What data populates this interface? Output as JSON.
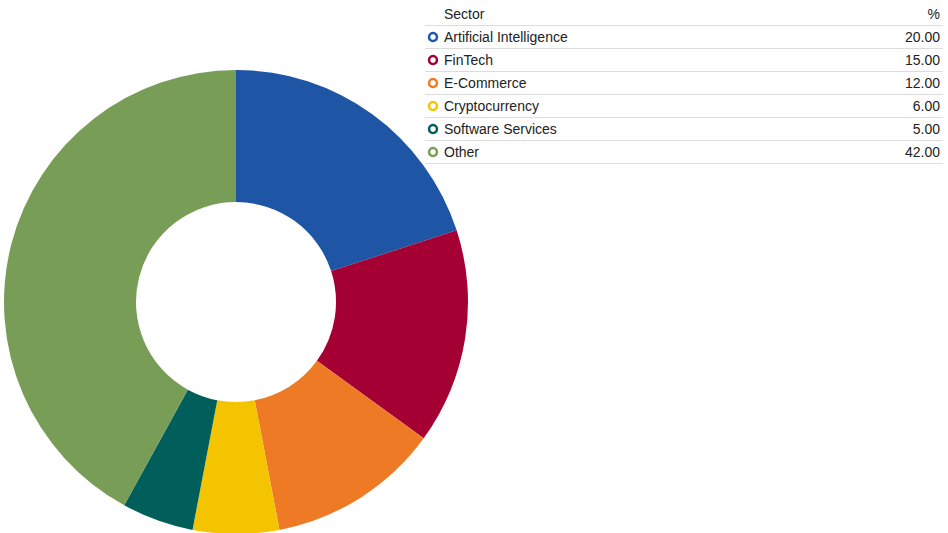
{
  "chart_data": {
    "type": "pie",
    "column_headers": [
      "Sector",
      "%"
    ],
    "categories": [
      "Artificial Intelligence",
      "FinTech",
      "E-Commerce",
      "Cryptocurrency",
      "Software Services",
      "Other"
    ],
    "values": [
      20,
      15,
      12,
      6,
      5,
      42
    ],
    "value_labels": [
      "20.00",
      "15.00",
      "12.00",
      "6.00",
      "5.00",
      "42.00"
    ],
    "colors": [
      "#1f55a5",
      "#a50034",
      "#ef7a26",
      "#f5c400",
      "#005f5a",
      "#789d56"
    ],
    "legend": "upper right"
  }
}
